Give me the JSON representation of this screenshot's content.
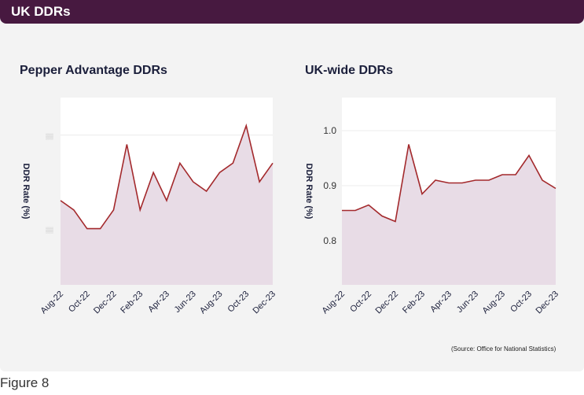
{
  "header": {
    "title": "UK DDRs"
  },
  "footer": {
    "source": "(Source: Office for National Statistics)",
    "caption": "Figure 8"
  },
  "colors": {
    "banner": "#471940",
    "line": "#a3292c",
    "fill": "#e8dce6",
    "plot_bg": "#ffffff"
  },
  "chart_data": [
    {
      "type": "area",
      "title": "Pepper Advantage DDRs",
      "xlabel": "",
      "ylabel": "DDR Rate (%)",
      "ylim": [
        0,
        10
      ],
      "yticks": [
        3,
        8
      ],
      "ytick_labels": [
        "▒▒",
        "▒▒"
      ],
      "x": [
        "Aug-22",
        "Sep-22",
        "Oct-22",
        "Nov-22",
        "Dec-22",
        "Jan-23",
        "Feb-23",
        "Mar-23",
        "Apr-23",
        "May-23",
        "Jun-23",
        "Jul-23",
        "Aug-23",
        "Sep-23",
        "Oct-23",
        "Nov-23",
        "Dec-23"
      ],
      "xtick_labels": [
        "Aug-22",
        "Oct-22",
        "Dec-22",
        "Feb-23",
        "Apr-23",
        "Jun-23",
        "Aug-23",
        "Oct-23",
        "Dec-23"
      ],
      "values": [
        4.5,
        4.0,
        3.0,
        3.0,
        4.0,
        7.5,
        4.0,
        6.0,
        4.5,
        6.5,
        5.5,
        5.0,
        6.0,
        6.5,
        8.5,
        5.5,
        6.5
      ]
    },
    {
      "type": "area",
      "title": "UK-wide DDRs",
      "xlabel": "",
      "ylabel": "DDR Rate (%)",
      "ylim": [
        0.72,
        1.06
      ],
      "yticks": [
        0.8,
        0.9,
        1.0
      ],
      "ytick_labels": [
        "0.8",
        "0.9",
        "1.0"
      ],
      "x": [
        "Aug-22",
        "Sep-22",
        "Oct-22",
        "Nov-22",
        "Dec-22",
        "Jan-23",
        "Feb-23",
        "Mar-23",
        "Apr-23",
        "May-23",
        "Jun-23",
        "Jul-23",
        "Aug-23",
        "Sep-23",
        "Oct-23",
        "Nov-23",
        "Dec-23"
      ],
      "xtick_labels": [
        "Aug-22",
        "Oct-22",
        "Dec-22",
        "Feb-23",
        "Apr-23",
        "Jun-23",
        "Aug-23",
        "Oct-23",
        "Dec-23"
      ],
      "values": [
        0.855,
        0.855,
        0.865,
        0.845,
        0.835,
        0.975,
        0.885,
        0.91,
        0.905,
        0.905,
        0.91,
        0.91,
        0.92,
        0.92,
        0.955,
        0.91,
        0.895
      ]
    }
  ]
}
